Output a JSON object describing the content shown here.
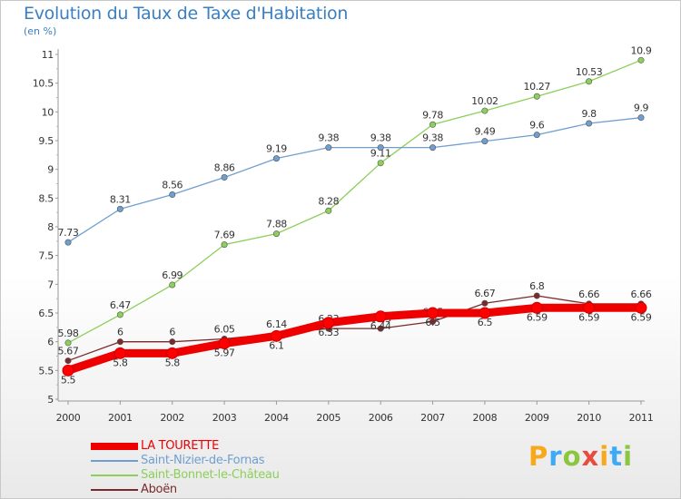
{
  "title": "Evolution du Taux de Taxe d'Habitation",
  "subtitle": "(en %)",
  "brand": {
    "letters": [
      "P",
      "r",
      "o",
      "x",
      "i",
      "t",
      "i"
    ],
    "colors": [
      "#f7a81b",
      "#3fa9f5",
      "#8cc63f",
      "#e84c3d",
      "#f7a81b",
      "#3fa9f5",
      "#8cc63f"
    ]
  },
  "chart_data": {
    "type": "line",
    "x": [
      "2000",
      "2001",
      "2002",
      "2003",
      "2004",
      "2005",
      "2006",
      "2007",
      "2008",
      "2009",
      "2010",
      "2011"
    ],
    "ylim": [
      5,
      11
    ],
    "yticks": [
      "5",
      "5.5",
      "6",
      "6.5",
      "7",
      "7.5",
      "8",
      "8.5",
      "9",
      "9.5",
      "10",
      "10.5",
      "11"
    ],
    "grid": false,
    "legend_position": "bottom-left",
    "series": [
      {
        "name": "LA TOURETTE",
        "color": "#ee0000",
        "values": [
          5.5,
          5.8,
          5.8,
          5.97,
          6.1,
          6.33,
          6.44,
          6.5,
          6.5,
          6.59,
          6.59,
          6.59
        ],
        "labels": [
          "5.5",
          "5.8",
          "5.8",
          "5.97",
          "6.1",
          "6.33",
          "6.44",
          "6.5",
          "6.5",
          "6.59",
          "6.59",
          "6.59"
        ]
      },
      {
        "name": "Saint-Nizier-de-Fornas",
        "color": "#6f9fd0",
        "values": [
          7.73,
          8.31,
          8.56,
          8.86,
          9.19,
          9.38,
          9.38,
          9.38,
          9.49,
          9.6,
          9.8,
          9.9
        ],
        "labels": [
          "7.73",
          "8.31",
          "8.56",
          "8.86",
          "9.19",
          "9.38",
          "9.38",
          "9.38",
          "9.49",
          "9.6",
          "9.8",
          "9.9"
        ]
      },
      {
        "name": "Saint-Bonnet-le-Château",
        "color": "#8ccf5a",
        "values": [
          5.98,
          6.47,
          6.99,
          7.69,
          7.88,
          8.28,
          9.11,
          9.78,
          10.02,
          10.27,
          10.53,
          10.9
        ],
        "labels": [
          "5.98",
          "6.47",
          "6.99",
          "7.69",
          "7.88",
          "8.28",
          "9.11",
          "9.78",
          "10.02",
          "10.27",
          "10.53",
          "10.9"
        ]
      },
      {
        "name": "Aboën",
        "color": "#7a2a2a",
        "values": [
          5.67,
          6.0,
          6.0,
          6.05,
          6.14,
          6.23,
          6.23,
          6.35,
          6.67,
          6.8,
          6.66,
          6.66
        ],
        "labels": [
          "5.67",
          "6",
          "6",
          "6.05",
          "6.14",
          "6.23",
          "6.23",
          "6.35",
          "6.67",
          "6.8",
          "6.66",
          "6.66"
        ]
      }
    ]
  }
}
